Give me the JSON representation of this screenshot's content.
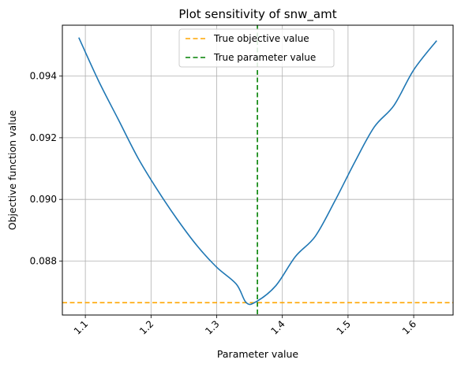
{
  "chart_data": {
    "type": "line",
    "title": "Plot sensitivity of snw_amt",
    "xlabel": "Parameter value",
    "ylabel": "Objective function value",
    "xlim": [
      1.065,
      1.66
    ],
    "ylim": [
      0.08625,
      0.09565
    ],
    "xticks": [
      1.1,
      1.2,
      1.3,
      1.4,
      1.5,
      1.6
    ],
    "xtick_labels": [
      "1.1",
      "1.2",
      "1.3",
      "1.4",
      "1.5",
      "1.6"
    ],
    "yticks": [
      0.088,
      0.09,
      0.092,
      0.094
    ],
    "ytick_labels": [
      "0.088",
      "0.090",
      "0.092",
      "0.094"
    ],
    "xtick_rotation_deg": 45,
    "grid": true,
    "legend_location": "upper center",
    "series": [
      {
        "x": [
          1.09,
          1.12,
          1.15,
          1.18,
          1.21,
          1.24,
          1.27,
          1.3,
          1.33,
          1.345,
          1.36,
          1.39,
          1.42,
          1.45,
          1.48,
          1.51,
          1.54,
          1.57,
          1.6,
          1.635
        ],
        "y": [
          0.09525,
          0.09385,
          0.0926,
          0.09135,
          0.0903,
          0.08935,
          0.0885,
          0.0878,
          0.08725,
          0.08665,
          0.08668,
          0.0872,
          0.08815,
          0.0888,
          0.08995,
          0.0912,
          0.09235,
          0.09305,
          0.0942,
          0.09515
        ],
        "color": "#1f77b4"
      }
    ],
    "reference_lines": [
      {
        "name": "True objective value",
        "orientation": "horizontal",
        "value": 0.08665,
        "color": "#ffa500",
        "style": "dashed"
      },
      {
        "name": "True parameter value",
        "orientation": "vertical",
        "value": 1.362,
        "color": "#008000",
        "style": "dashed"
      }
    ]
  }
}
